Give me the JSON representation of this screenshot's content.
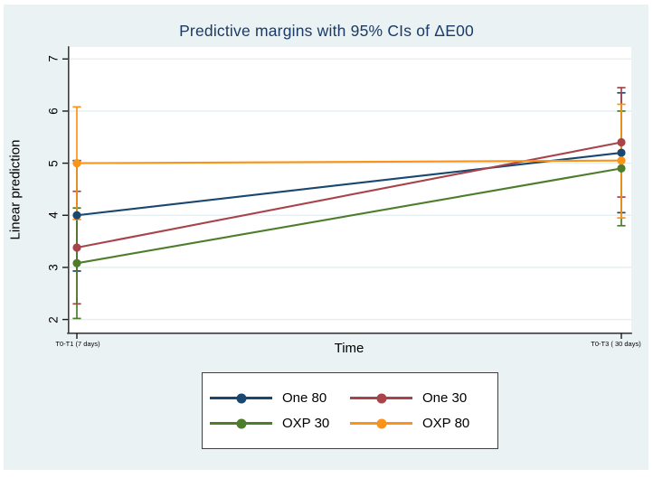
{
  "colors": {
    "background": "#eaf2f3",
    "plot_background": "#ffffff",
    "title_text": "#1b3a66",
    "gridline": "#e2eef1",
    "axis_line": "#3c3c3c",
    "tick": "#1a1a1a"
  },
  "chart_data": {
    "type": "line",
    "title": "Predictive margins with 95% CIs of ΔE00",
    "xlabel": "Time",
    "ylabel": "Linear prediction",
    "categories": [
      "T0-T1 (7 days)",
      "T0-T3 ( 30 days)"
    ],
    "yticks": [
      2,
      3,
      4,
      5,
      6,
      7
    ],
    "ylim": [
      1.75,
      7.23
    ],
    "grid": true,
    "legend_position": "bottom-center",
    "error_bars": "95% CI",
    "series": [
      {
        "name": "One 80",
        "color": "#1a476f",
        "values": [
          4.0,
          5.2
        ],
        "ci_low": [
          2.93,
          4.05
        ],
        "ci_high": [
          5.05,
          6.35
        ]
      },
      {
        "name": "One 30",
        "color": "#a8434a",
        "values": [
          3.38,
          5.4
        ],
        "ci_low": [
          2.3,
          4.35
        ],
        "ci_high": [
          4.46,
          6.45
        ]
      },
      {
        "name": "OXP 30",
        "color": "#4d7d2b",
        "values": [
          3.08,
          4.9
        ],
        "ci_low": [
          2.02,
          3.8
        ],
        "ci_high": [
          4.14,
          6.0
        ]
      },
      {
        "name": "OXP 80",
        "color": "#fb9318",
        "values": [
          5.0,
          5.05
        ],
        "ci_low": [
          3.92,
          3.95
        ],
        "ci_high": [
          6.08,
          6.13
        ]
      }
    ]
  }
}
